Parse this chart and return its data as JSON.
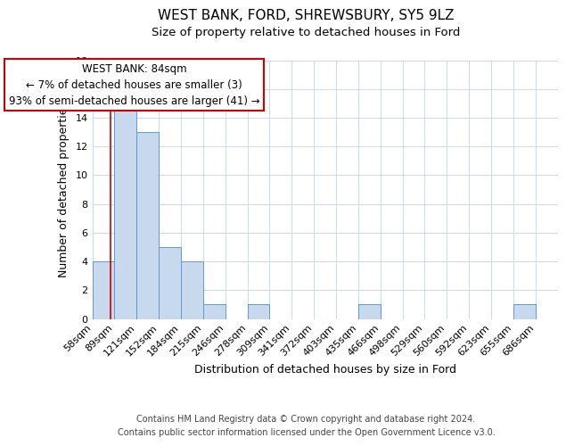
{
  "title": "WEST BANK, FORD, SHREWSBURY, SY5 9LZ",
  "subtitle": "Size of property relative to detached houses in Ford",
  "xlabel": "Distribution of detached houses by size in Ford",
  "ylabel": "Number of detached properties",
  "bin_labels": [
    "58sqm",
    "89sqm",
    "121sqm",
    "152sqm",
    "184sqm",
    "215sqm",
    "246sqm",
    "278sqm",
    "309sqm",
    "341sqm",
    "372sqm",
    "403sqm",
    "435sqm",
    "466sqm",
    "498sqm",
    "529sqm",
    "560sqm",
    "592sqm",
    "623sqm",
    "655sqm",
    "686sqm"
  ],
  "bar_values": [
    4,
    15,
    13,
    5,
    4,
    1,
    0,
    1,
    0,
    0,
    0,
    0,
    1,
    0,
    0,
    0,
    0,
    0,
    0,
    1,
    0
  ],
  "bar_color": "#c8d9ed",
  "bar_edge_color": "#5b9bd5",
  "ylim": [
    0,
    18
  ],
  "yticks": [
    0,
    2,
    4,
    6,
    8,
    10,
    12,
    14,
    16,
    18
  ],
  "annotation_text": "WEST BANK: 84sqm\n← 7% of detached houses are smaller (3)\n93% of semi-detached houses are larger (41) →",
  "annotation_box_color": "#ffffff",
  "annotation_box_edge_color": "#cc0000",
  "red_line_color": "#cc0000",
  "footer_line1": "Contains HM Land Registry data © Crown copyright and database right 2024.",
  "footer_line2": "Contains public sector information licensed under the Open Government Licence v3.0.",
  "background_color": "#ffffff",
  "grid_color": "#c8d9ed",
  "title_fontsize": 11,
  "subtitle_fontsize": 9.5,
  "axis_label_fontsize": 9,
  "tick_fontsize": 8,
  "annotation_fontsize": 8.5,
  "footer_fontsize": 7
}
